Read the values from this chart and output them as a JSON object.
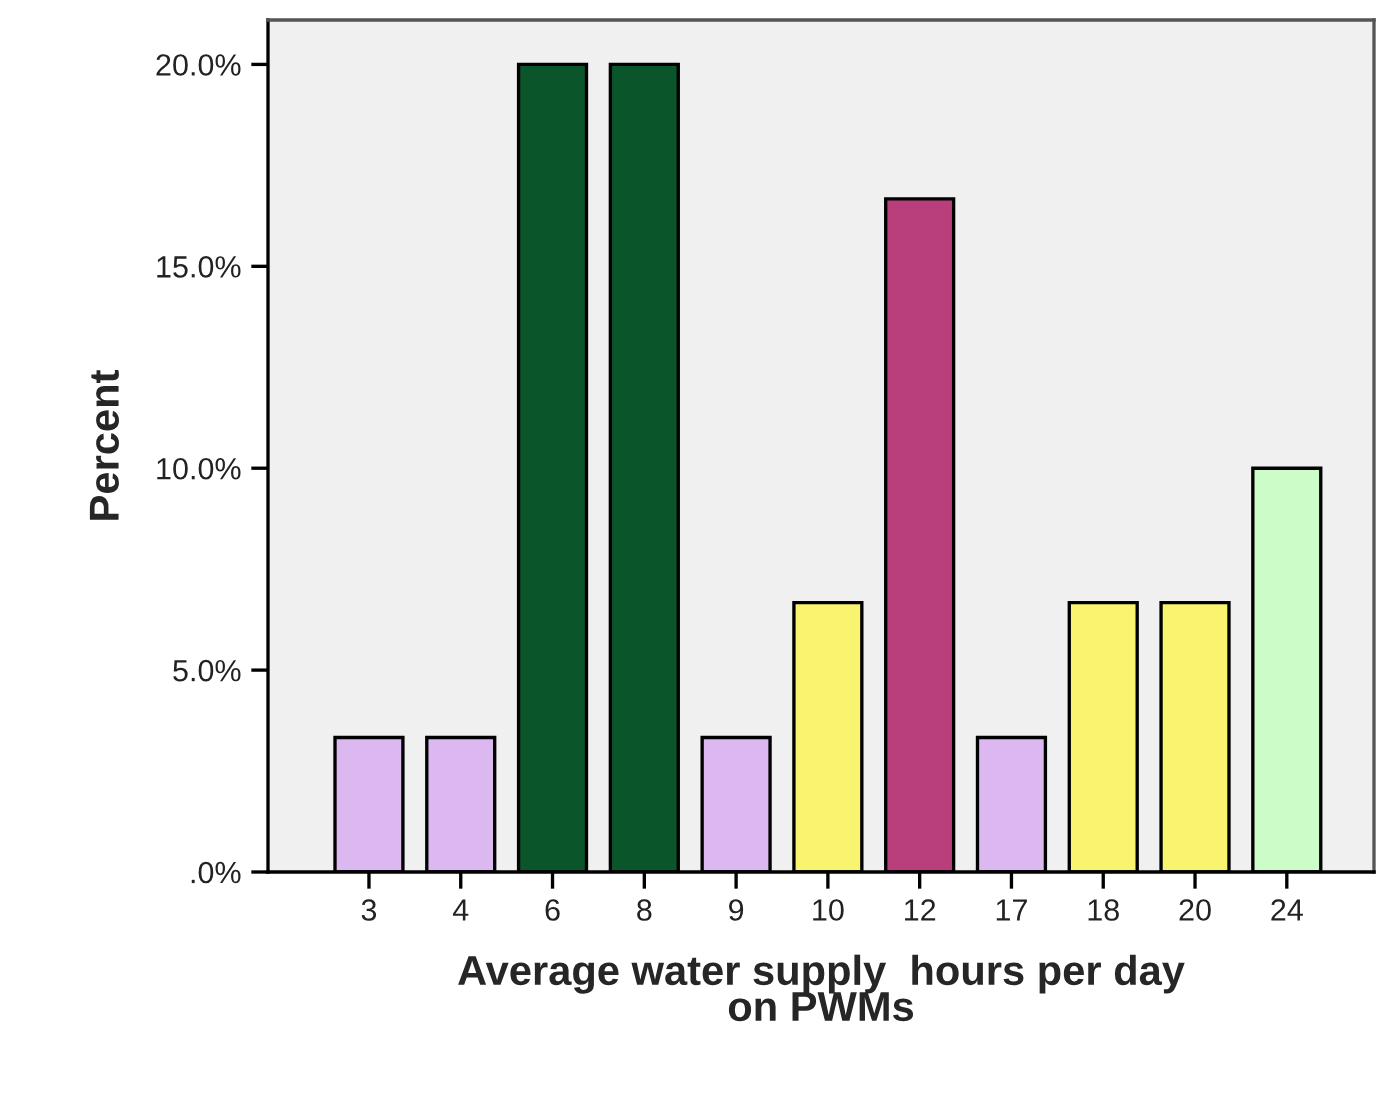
{
  "chart_data": {
    "type": "bar",
    "categories": [
      "3",
      "4",
      "6",
      "8",
      "9",
      "10",
      "12",
      "17",
      "18",
      "20",
      "24"
    ],
    "values": [
      3.33,
      3.33,
      20,
      20,
      3.33,
      6.67,
      16.67,
      3.33,
      6.67,
      6.67,
      10
    ],
    "colors": [
      "#dcb8f0",
      "#dcb8f0",
      "#0b552b",
      "#0b552b",
      "#dcb8f0",
      "#f8f470",
      "#b93f7c",
      "#dcb8f0",
      "#f8f470",
      "#f8f470",
      "#ccfcc8"
    ],
    "xlabel": "Average water supply  hours per day\non PWMs",
    "ylabel": "Percent",
    "ylim": [
      0,
      21.1
    ],
    "yticks": [
      {
        "value": 0,
        "label": ".0%"
      },
      {
        "value": 5,
        "label": "5.0%"
      },
      {
        "value": 10,
        "label": "10.0%"
      },
      {
        "value": 15,
        "label": "15.0%"
      },
      {
        "value": 20,
        "label": "20.0%"
      }
    ],
    "grid": false,
    "legend": false
  }
}
